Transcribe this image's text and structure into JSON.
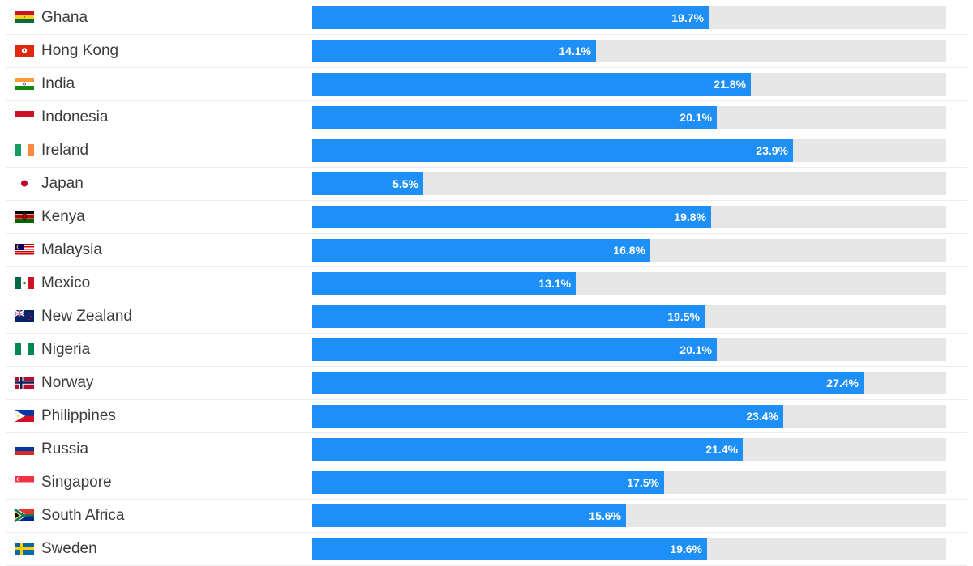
{
  "chart_data": {
    "type": "bar",
    "orientation": "horizontal",
    "xlim": [
      0,
      31.5
    ],
    "bar_color": "#1e8ff7",
    "track_color": "#e6e6e6",
    "categories": [
      "Ghana",
      "Hong Kong",
      "India",
      "Indonesia",
      "Ireland",
      "Japan",
      "Kenya",
      "Malaysia",
      "Mexico",
      "New Zealand",
      "Nigeria",
      "Norway",
      "Philippines",
      "Russia",
      "Singapore",
      "South Africa",
      "Sweden"
    ],
    "values": [
      19.7,
      14.1,
      21.8,
      20.1,
      23.9,
      5.5,
      19.8,
      16.8,
      13.1,
      19.5,
      20.1,
      27.4,
      23.4,
      21.4,
      17.5,
      15.6,
      19.6
    ],
    "value_labels": [
      "19.7%",
      "14.1%",
      "21.8%",
      "20.1%",
      "23.9%",
      "5.5%",
      "19.8%",
      "16.8%",
      "13.1%",
      "19.5%",
      "20.1%",
      "27.4%",
      "23.4%",
      "21.4%",
      "17.5%",
      "15.6%",
      "19.6%"
    ],
    "flag_icons": [
      "ghana-flag-icon",
      "hong-kong-flag-icon",
      "india-flag-icon",
      "indonesia-flag-icon",
      "ireland-flag-icon",
      "japan-flag-icon",
      "kenya-flag-icon",
      "malaysia-flag-icon",
      "mexico-flag-icon",
      "new-zealand-flag-icon",
      "nigeria-flag-icon",
      "norway-flag-icon",
      "philippines-flag-icon",
      "russia-flag-icon",
      "singapore-flag-icon",
      "south-africa-flag-icon",
      "sweden-flag-icon"
    ]
  }
}
